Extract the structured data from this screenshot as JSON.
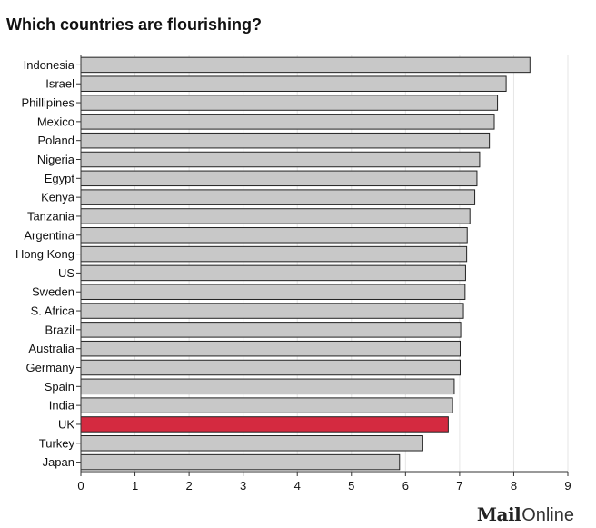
{
  "chart_data": {
    "type": "bar",
    "orientation": "horizontal",
    "title": "Which countries are flourishing?",
    "categories": [
      "Indonesia",
      "Israel",
      "Phillipines",
      "Mexico",
      "Poland",
      "Nigeria",
      "Egypt",
      "Kenya",
      "Tanzania",
      "Argentina",
      "Hong Kong",
      "US",
      "Sweden",
      "S. Africa",
      "Brazil",
      "Australia",
      "Germany",
      "Spain",
      "India",
      "UK",
      "Turkey",
      "Japan"
    ],
    "values": [
      8.3,
      7.86,
      7.7,
      7.64,
      7.55,
      7.37,
      7.32,
      7.28,
      7.19,
      7.14,
      7.13,
      7.11,
      7.1,
      7.07,
      7.02,
      7.01,
      7.01,
      6.9,
      6.87,
      6.79,
      6.32,
      5.89
    ],
    "highlight": "UK",
    "xlim": [
      0,
      9
    ],
    "xticks": [
      0,
      1,
      2,
      3,
      4,
      5,
      6,
      7,
      8,
      9
    ],
    "xlabel": "",
    "ylabel": "",
    "grid": "vertical",
    "colors": {
      "bar": "#c8c8c8",
      "bar_stroke": "#222222",
      "highlight": "#d42a40",
      "grid": "#e6e6e6",
      "axis": "#333333"
    }
  },
  "brand": {
    "mail": "Mail",
    "online": "Online"
  }
}
